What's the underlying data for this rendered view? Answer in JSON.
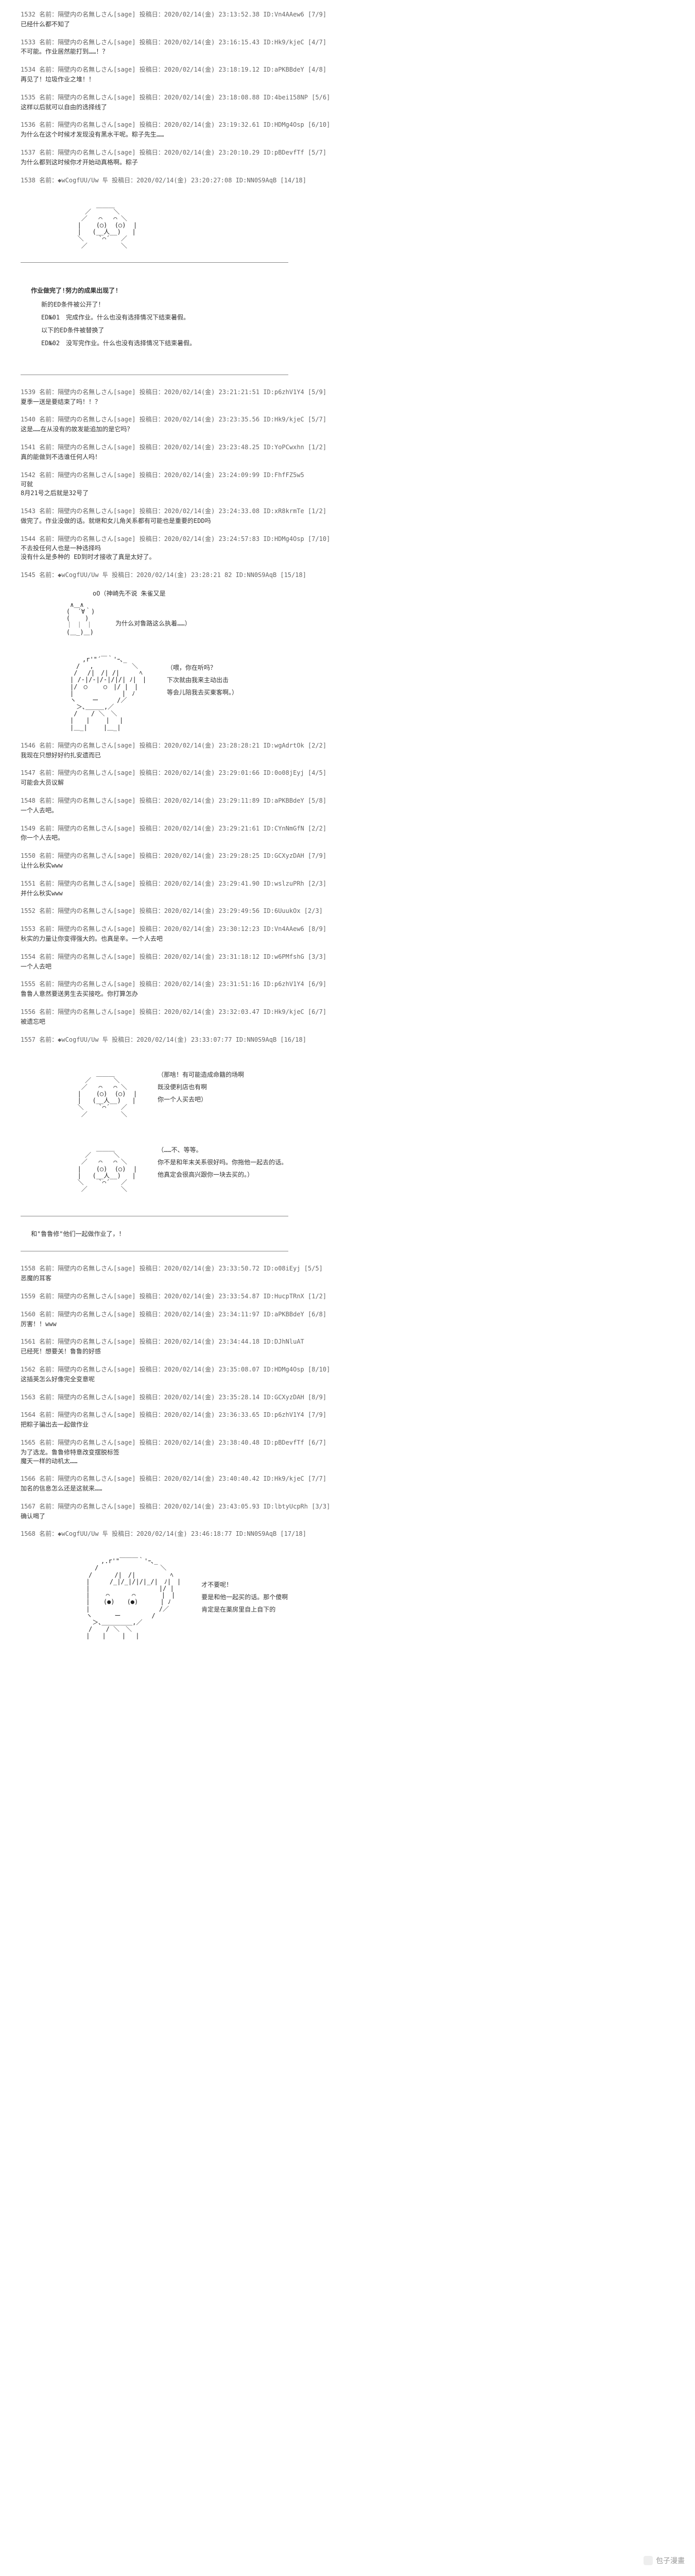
{
  "posts_block1": [
    {
      "num": "1532",
      "name": "名前：隔壁内の名無しさん[sage] 投稿日：2020/02/14(金) 23:13:52.38 ID:Vn4AAew6 [7/9]",
      "body": "已经什么都不知了"
    },
    {
      "num": "1533",
      "name": "名前：隔壁内の名無しさん[sage] 投稿日：2020/02/14(金) 23:16:15.43 ID:Hk9/kjeC [4/7]",
      "body": "不可能。作业居然能打到……！？"
    },
    {
      "num": "1534",
      "name": "名前：隔壁内の名無しさん[sage] 投稿日：2020/02/14(金) 23:18:19.12 ID:aPKBBdeY [4/8]",
      "body": "再见了！垃圾作业之堆！！"
    },
    {
      "num": "1535",
      "name": "名前：隔壁内の名無しさん[sage] 投稿日：2020/02/14(金) 23:18:08.88 ID:4bei158NP [5/6]",
      "body": "这样以后就可以自由的选择线了"
    },
    {
      "num": "1536",
      "name": "名前：隔壁内の名無しさん[sage] 投稿日：2020/02/14(金) 23:19:32.61 ID:HDMg4Osp [6/10]",
      "body": "为什么在这个时候才发现没有黑水干呢。粽子先生……"
    },
    {
      "num": "1537",
      "name": "名前：隔壁内の名無しさん[sage] 投稿日：2020/02/14(金) 23:20:10.29 ID:pBDevfTf [5/7]",
      "body": "为什么都到这时候你才开始动真格啊。粽子"
    },
    {
      "num": "1538",
      "name": "名前：◆wCogfUU/Uw 투 投稿日：2020/02/14(金) 23:20:27:08 ID:NN0S9AqB [14/18]",
      "body": ""
    }
  ],
  "aa1": "\n            ＿＿＿\n         ／      ＼\n        ／   ⌒   ⌒ ＼\n       |    (○)  (○)  |\n       |   (__人__)   |\n       ＼    `⌒´   ／\n        ／         ＼\n",
  "edbox": {
    "title": "作业做完了!努力的成果出现了!",
    "sub": "新的ED条件被公开了！",
    "line1": "ED№01　完成作业。什么也没有选择情况下结束暑假。",
    "mid": "以下的ED条件被替换了",
    "line2": "ED№02　没写完作业。什么也没有选择情况下结束暑假。"
  },
  "posts_block2": [
    {
      "num": "1539",
      "name": "名前：隔壁内の名無しさん[sage] 投稿日：2020/02/14(金) 23:21:21:51 ID:p6zhV1Y4 [5/9]",
      "body": "夏季一送是要结束了吗！！？"
    },
    {
      "num": "1540",
      "name": "名前：隔壁内の名無しさん[sage] 投稿日：2020/02/14(金) 23:23:35.56 ID:Hk9/kjeC [5/7]",
      "body": "这是……在从没有的故发能追加的是它吗？"
    },
    {
      "num": "1541",
      "name": "名前：隔壁内の名無しさん[sage] 投稿日：2020/02/14(金) 23:23:48.25 ID:YoPCwxhn [1/2]",
      "body": "真的能做到不选谁任何人吗！"
    },
    {
      "num": "1542",
      "name": "名前：隔壁内の名無しさん[sage] 投稿日：2020/02/14(金) 23:24:09:99 ID:FhfFZ5w5",
      "body": "可就\n8月21号之后就是32号了"
    },
    {
      "num": "1543",
      "name": "名前：隔壁内の名無しさん[sage] 投稿日：2020/02/14(金) 23:24:33.08 ID:xR8krmTe [1/2]",
      "body": "做完了。作业没做的话。就继和女儿角关系都有可能也是重要的EDD吗"
    },
    {
      "num": "1544",
      "name": "名前：隔壁内の名無しさん[sage] 投稿日：2020/02/14(金) 23:24:57:83 ID:HDMg4Osp [7/10]",
      "body": "不去投任何人也是一种选择吗\n没有什么是多种的 ED到时才接收了真是太好了。"
    },
    {
      "num": "1545",
      "name": "名前：◆wCogfUU/Uw 투 投稿日：2020/02/14(金) 23:28:21 82 ID:NN0S9AqB [15/18]",
      "body": ""
    }
  ],
  "aa2_label": "oO（神崎先不说  朱雀又是",
  "aa2_text": "为什么对鲁路这么执着……）",
  "aa2": "     ∧＿∧\n    (  ´∀｀)\n    (    )\n    ｜ ｜ ｜\n    (＿_)＿)",
  "aa3": "　　　　　,r'\"´￣｀'ｰ､_\n　　　　/　 ,　 　 　　　＼\n　　　 /　 /|　/| /| 　 　ﾍ\n　　　| /-|/-|/-|/|/| ﾉ|　|\n　　　|/　○　　 ○　|/ |　|\n　　　|　　 　 　　　 |　ﾉ\n　　　ヽ　　 ー　　　/／\n　　　　＞､＿＿＿,／\n　　　 / 　 / ＼　＼\n　　　|　　|　　 |　 |\n　　　|＿_|　　 |＿_|",
  "aa3_texts": [
    "（喂，你在听吗？",
    "下次就由我来主动出击",
    "等会儿陪我去买東客啊。）"
  ],
  "posts_block3": [
    {
      "num": "1546",
      "name": "名前：隔壁内の名無しさん[sage] 投稿日：2020/02/14(金) 23:28:28:21 ID:wgAdrtOk [2/2]",
      "body": "我现在只想好好约扎安遗而已"
    },
    {
      "num": "1547",
      "name": "名前：隔壁内の名無しさん[sage] 投稿日：2020/02/14(金) 23:29:01:66 ID:0o08jEyj [4/5]",
      "body": "可能会大员议解"
    },
    {
      "num": "1548",
      "name": "名前：隔壁内の名無しさん[sage] 投稿日：2020/02/14(金) 23:29:11:89 ID:aPKBBdeY [5/8]",
      "body": "一个人去吧。"
    },
    {
      "num": "1549",
      "name": "名前：隔壁内の名無しさん[sage] 投稿日：2020/02/14(金) 23:29:21:61 ID:CYnNmGfN [2/2]",
      "body": "你一个人去吧。"
    },
    {
      "num": "1550",
      "name": "名前：隔壁内の名無しさん[sage] 投稿日：2020/02/14(金) 23:29:28:25 ID:GCXyzDAH [7/9]",
      "body": "让什么秋实www"
    },
    {
      "num": "1551",
      "name": "名前：隔壁内の名無しさん[sage] 投稿日：2020/02/14(金) 23:29:41.90 ID:wslzuPRh [2/3]",
      "body": "并什么秋实www"
    },
    {
      "num": "1552",
      "name": "名前：隔壁内の名無しさん[sage] 投稿日：2020/02/14(金) 23:29:49:56 ID:6UuukOx [2/3]",
      "body": ""
    },
    {
      "num": "1553",
      "name": "名前：隔壁内の名無しさん[sage] 投稿日：2020/02/14(金) 23:30:12:23 ID:Vn4AAew6 [8/9]",
      "body": "秋实的力量让你变得强大的。也真是辛。一个人去吧"
    },
    {
      "num": "1554",
      "name": "名前：隔壁内の名無しさん[sage] 投稿日：2020/02/14(金) 23:31:18:12 ID:w6PMfshG [3/3]",
      "body": "一个人去吧"
    },
    {
      "num": "1555",
      "name": "名前：隔壁内の名無しさん[sage] 投稿日：2020/02/14(金) 23:31:51:16 ID:p6zhV1Y4 [6/9]",
      "body": "鲁鲁人意然要送男生去买接吃。你打算怎办"
    },
    {
      "num": "1556",
      "name": "名前：隔壁内の名無しさん[sage] 投稿日：2020/02/14(金) 23:32:03.47 ID:Hk9/kjeC  [6/7]",
      "body": "被遗忘吧"
    },
    {
      "num": "1557",
      "name": "名前：◆wCogfUU/Uw 투 投稿日：2020/02/14(金) 23:33:07:77 ID:NN0S9AqB [16/18]",
      "body": ""
    }
  ],
  "aa4_lines": [
    "（那啥！有可能造成命籍的场啊",
    "既没便利店也有啊",
    "你一个人买去吧）"
  ],
  "aa5_lines": [
    "（……不、等等。",
    "你不是和年末关系很好吗。你拖他一起去的话。",
    "他真定会很高兴跟你一块去买的。）"
  ],
  "transition": "和\"鲁鲁修\"他们一起做作业了，！",
  "posts_block4": [
    {
      "num": "1558",
      "name": "名前：隔壁内の名無しさん[sage] 投稿日：2020/02/14(金) 23:33:50.72 ID:o08iEyj [5/5]",
      "body": "恶魔的耳客"
    },
    {
      "num": "1559",
      "name": "名前：隔壁内の名無しさん[sage] 投稿日：2020/02/14(金) 23:33:54.87 ID:HucpTRnX  [1/2]",
      "body": ""
    },
    {
      "num": "1560",
      "name": "名前：隔壁内の名無しさん[sage] 投稿日：2020/02/14(金) 23:34:11:97 ID:aPKBBdeY [6/8]",
      "body": "厉害！！www"
    },
    {
      "num": "1561",
      "name": "名前：隔壁内の名無しさん[sage] 投稿日：2020/02/14(金) 23:34:44.18 ID:DJhNluAT",
      "body": "已经死！想要关！鲁鲁的好感"
    },
    {
      "num": "1562",
      "name": "名前：隔壁内の名無しさん[sage] 投稿日：2020/02/14(金) 23:35:08.07 ID:HDMg4Osp [8/10]",
      "body": "这插英怎么好像完全变意呢"
    },
    {
      "num": "1563",
      "name": "名前：隔壁内の名無しさん[sage] 投稿日：2020/02/14(金) 23:35:28.14 ID:GCXyzDAH [8/9]",
      "body": ""
    },
    {
      "num": "1564",
      "name": "名前：隔壁内の名無しさん[sage] 投稿日：2020/02/14(金) 23:36:33.65 ID:p6zhV1Y4 [7/9]",
      "body": "把粽子骗出去一起做作业"
    },
    {
      "num": "1565",
      "name": "名前：隔壁内の名無しさん[sage] 投稿日：2020/02/14(金) 23:38:40.48 ID:pBDevfTf [6/7]",
      "body": "为了选龙。鲁鲁修特意改变摆脱标签\n魔天一样的动机太……"
    },
    {
      "num": "1566",
      "name": "名前：隔壁内の名無しさん[sage] 投稿日：2020/02/14(金) 23:40:40.42 ID:Hk9/kjeC  [7/7]",
      "body": "加名的信息怎么还是这就来……"
    },
    {
      "num": "1567",
      "name": "名前：隔壁内の名無しさん[sage] 投稿日：2020/02/14(金) 23:43:05.93 ID:lbtyUcpRh [3/3]",
      "body": "确认喝了"
    },
    {
      "num": "1568",
      "name": "名前：◆wCogfUU/Uw 투 投稿日：2020/02/14(金) 23:46:18:77 ID:NN0S9AqB [17/18]",
      "body": ""
    }
  ],
  "aa6": "　　　　　　　　,.r'\"￣￣￣｀'ｰ､_\n　　　　　　　/　　　　　　　　　　＼\n　　　　　　/　　　 /|　/|　　 　　　ﾍ\n　　　　　 |　 　 /_|/_|/|/|_/|　ﾉ|　|\n　　　　　 | 　　　　　　　　 　　|/ |\n　　　　　 |　　 ⌒　 　　⌒　 　　 |　|\n　　　　　 | 　 (●)　　(●)　 　　| ﾉ\n　　　　　 |　　　 　　　　　　　 /／\n　　　　　 ヽ　　　 ー　　　　　/\n　　　　　　 ＞､＿＿＿＿＿,／\n　　　　　　/ 　 / ＼　＼\n　　　　　 |　　|　　 |　 |",
  "aa6_texts": [
    "才不要呢！",
    "要是和他一起买的话。那个傻啊",
    "肯定是在薬房里自上自下的"
  ],
  "watermark": "包子漫畫"
}
